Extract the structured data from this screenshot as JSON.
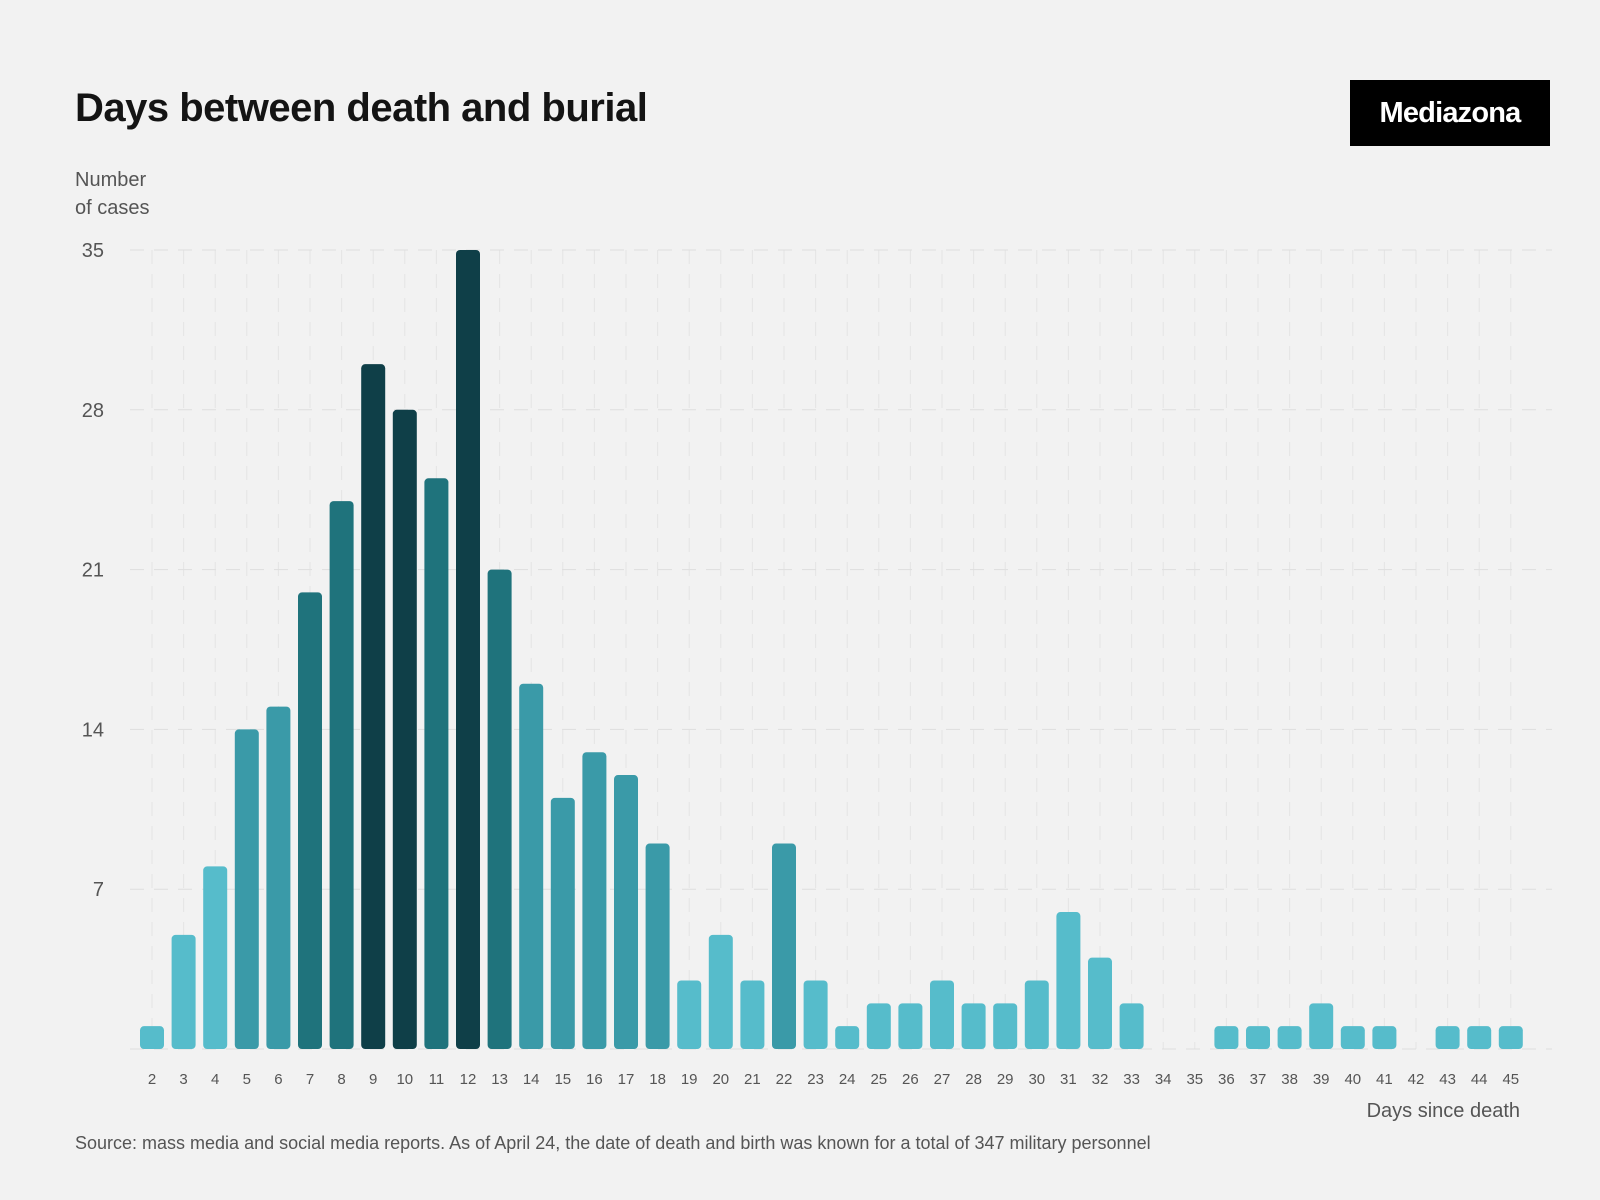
{
  "chart_data": {
    "type": "bar",
    "title": "Days between death and burial",
    "ylabel_line1": "Number",
    "ylabel_line2": "of cases",
    "xlabel": "Days since death",
    "source": "Source: mass media and social media reports. As of April 24, the date of death and birth was known for a total of 347 military personnel",
    "ylim": [
      0,
      35
    ],
    "yticks": [
      7,
      14,
      21,
      28,
      35
    ],
    "grid": true,
    "categories": [
      "2",
      "3",
      "4",
      "5",
      "6",
      "7",
      "8",
      "9",
      "10",
      "11",
      "12",
      "13",
      "14",
      "15",
      "16",
      "17",
      "18",
      "19",
      "20",
      "21",
      "22",
      "23",
      "24",
      "25",
      "26",
      "27",
      "28",
      "29",
      "30",
      "31",
      "32",
      "33",
      "34",
      "35",
      "36",
      "37",
      "38",
      "39",
      "40",
      "41",
      "42",
      "43",
      "44",
      "45"
    ],
    "values": [
      1,
      5,
      8,
      14,
      15,
      20,
      24,
      30,
      28,
      25,
      35,
      21,
      16,
      11,
      13,
      12,
      9,
      3,
      5,
      3,
      9,
      3,
      1,
      2,
      2,
      3,
      2,
      2,
      3,
      6,
      4,
      2,
      0,
      0,
      1,
      1,
      1,
      2,
      1,
      1,
      0,
      1,
      1,
      1
    ],
    "colors": {
      "lightest": "#56bccb",
      "light": "#3a9aa8",
      "medium": "#1f737c",
      "dark": "#0f3f48"
    }
  },
  "brand": {
    "logo_text": "Mediazona",
    "logo_bg": "#000000",
    "logo_fg": "#ffffff"
  }
}
